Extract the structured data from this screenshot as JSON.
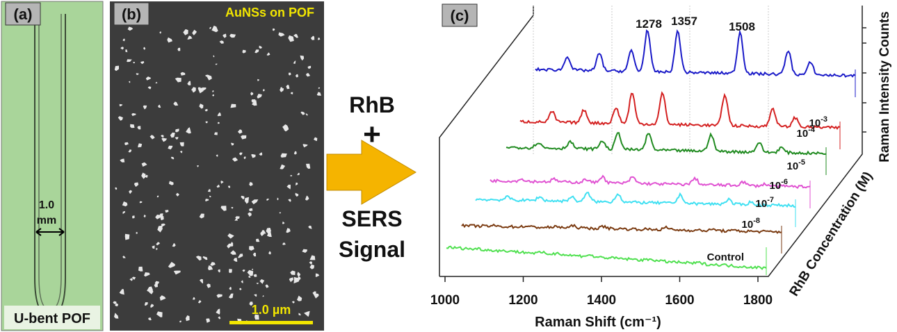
{
  "panel_a": {
    "label": "(a)",
    "width_value": "1.0",
    "width_unit": "mm",
    "caption": "U-bent POF"
  },
  "panel_b": {
    "label": "(b)",
    "title": "AuNSs on POF",
    "scale_bar": "1.0 µm"
  },
  "arrow": {
    "top": "RhB",
    "plus": "+",
    "bottom_1": "SERS",
    "bottom_2": "Signal"
  },
  "panel_c": {
    "label": "(c)",
    "x_axis_title": "Raman Shift (cm⁻¹)",
    "x_tick_labels": [
      "1000",
      "1200",
      "1400",
      "1600",
      "1800"
    ],
    "y_axis_title": "Raman Intensity Counts",
    "z_axis_title": "RhB Concentration (M)",
    "peaks": [
      "1278",
      "1357",
      "1508"
    ],
    "traces": [
      {
        "base": "10",
        "exp": "-3"
      },
      {
        "base": "10",
        "exp": "-4"
      },
      {
        "base": "10",
        "exp": "-5"
      },
      {
        "base": "10",
        "exp": "-6"
      },
      {
        "base": "10",
        "exp": "-7"
      },
      {
        "base": "10",
        "exp": "-8"
      },
      {
        "name": "Control"
      }
    ]
  }
}
